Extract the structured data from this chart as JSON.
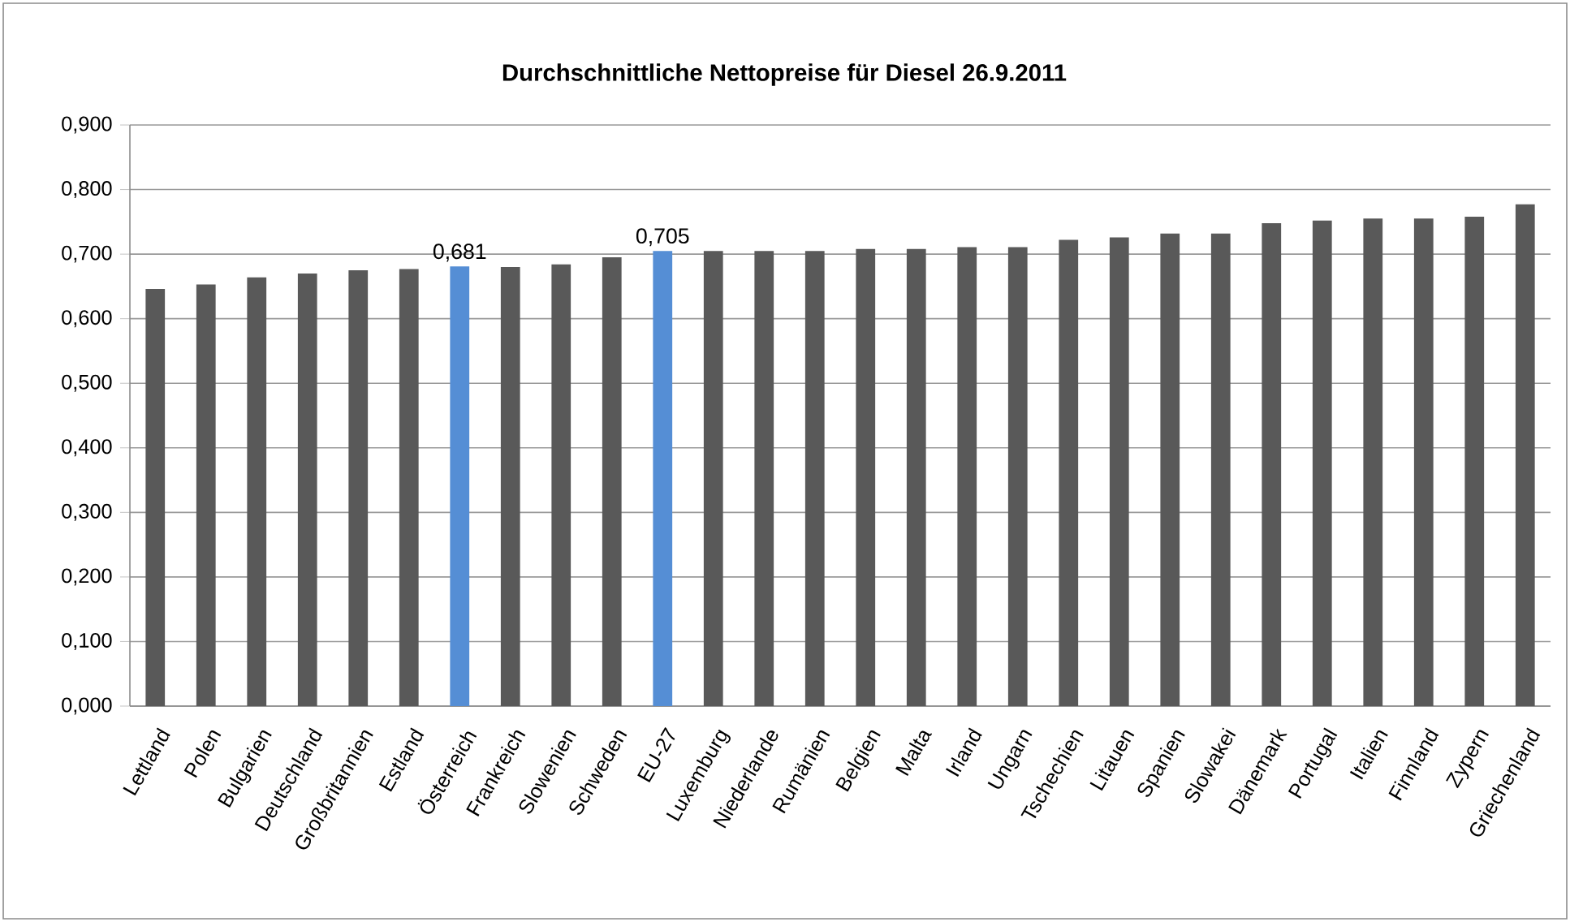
{
  "chart_data": {
    "type": "bar",
    "title": "Durchschnittliche Nettopreise für Diesel 26.9.2011",
    "categories": [
      "Lettland",
      "Polen",
      "Bulgarien",
      "Deutschland",
      "Großbritannien",
      "Estland",
      "Österreich",
      "Frankreich",
      "Slowenien",
      "Schweden",
      "EU-27",
      "Luxemburg",
      "Niederlande",
      "Rumänien",
      "Belgien",
      "Malta",
      "Irland",
      "Ungarn",
      "Tschechien",
      "Litauen",
      "Spanien",
      "Slowakei",
      "Dänemark",
      "Portugal",
      "Italien",
      "Finnland",
      "Zypern",
      "Griechenland"
    ],
    "values": [
      0.646,
      0.653,
      0.664,
      0.67,
      0.675,
      0.677,
      0.681,
      0.68,
      0.684,
      0.695,
      0.705,
      0.705,
      0.705,
      0.705,
      0.708,
      0.708,
      0.711,
      0.711,
      0.722,
      0.726,
      0.732,
      0.732,
      0.748,
      0.752,
      0.755,
      0.755,
      0.758,
      0.777
    ],
    "colors": [
      "#595959",
      "#595959",
      "#595959",
      "#595959",
      "#595959",
      "#595959",
      "#558ed5",
      "#595959",
      "#595959",
      "#595959",
      "#558ed5",
      "#595959",
      "#595959",
      "#595959",
      "#595959",
      "#595959",
      "#595959",
      "#595959",
      "#595959",
      "#595959",
      "#595959",
      "#595959",
      "#595959",
      "#595959",
      "#595959",
      "#595959",
      "#595959",
      "#595959"
    ],
    "value_labels": [
      null,
      null,
      null,
      null,
      null,
      null,
      "0,681",
      null,
      null,
      null,
      "0,705",
      null,
      null,
      null,
      null,
      null,
      null,
      null,
      null,
      null,
      null,
      null,
      null,
      null,
      null,
      null,
      null,
      null
    ],
    "ylim": [
      0,
      0.9
    ],
    "yticks": [
      {
        "value": 0,
        "label": "0,000"
      },
      {
        "value": 0.1,
        "label": "0,100"
      },
      {
        "value": 0.2,
        "label": "0,200"
      },
      {
        "value": 0.3,
        "label": "0,300"
      },
      {
        "value": 0.4,
        "label": "0,400"
      },
      {
        "value": 0.5,
        "label": "0,500"
      },
      {
        "value": 0.6,
        "label": "0,600"
      },
      {
        "value": 0.7,
        "label": "0,700"
      },
      {
        "value": 0.8,
        "label": "0,800"
      },
      {
        "value": 0.9,
        "label": "0,900"
      }
    ],
    "grid": "y"
  }
}
